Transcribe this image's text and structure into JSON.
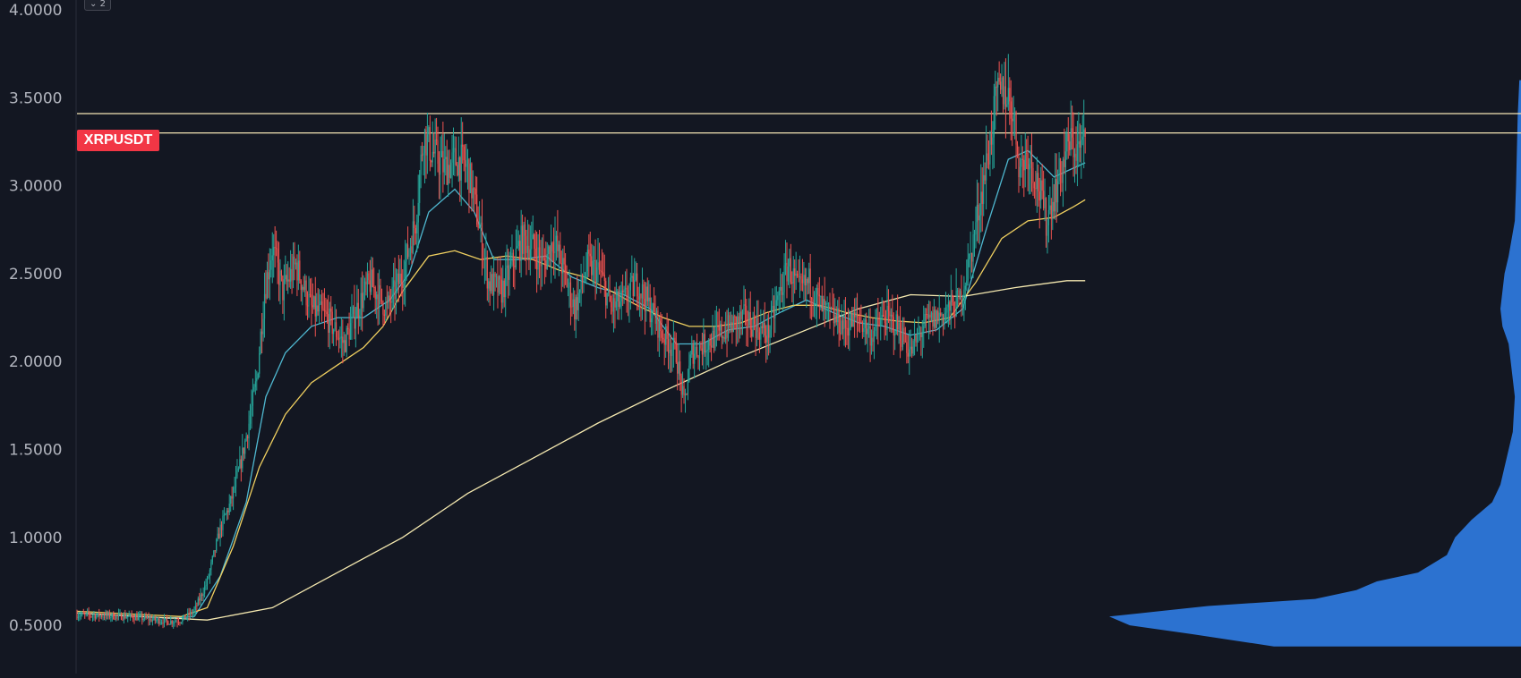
{
  "chart_data": {
    "type": "candlestick",
    "symbol": "XRPUSDT",
    "pane_badge": "2",
    "ylim": [
      0.3,
      4.0
    ],
    "y_ticks": [
      "4.0000",
      "3.5000",
      "3.0000",
      "2.5000",
      "2.0000",
      "1.5000",
      "1.0000",
      "0.5000"
    ],
    "y_tick_values": [
      4.0,
      3.5,
      3.0,
      2.5,
      2.0,
      1.5,
      1.0,
      0.5
    ],
    "horizontal_levels": [
      3.41,
      3.3
    ],
    "price_path": [
      [
        0,
        0.56
      ],
      [
        40,
        0.55
      ],
      [
        70,
        0.52
      ],
      [
        80,
        0.53
      ],
      [
        90,
        0.58
      ],
      [
        100,
        0.75
      ],
      [
        110,
        1.05
      ],
      [
        118,
        1.2
      ],
      [
        125,
        1.4
      ],
      [
        132,
        1.65
      ],
      [
        138,
        1.9
      ],
      [
        144,
        2.4
      ],
      [
        150,
        2.65
      ],
      [
        158,
        2.4
      ],
      [
        168,
        2.55
      ],
      [
        180,
        2.3
      ],
      [
        192,
        2.25
      ],
      [
        205,
        2.1
      ],
      [
        215,
        2.3
      ],
      [
        225,
        2.45
      ],
      [
        238,
        2.3
      ],
      [
        250,
        2.5
      ],
      [
        260,
        2.8
      ],
      [
        266,
        3.3
      ],
      [
        272,
        3.2
      ],
      [
        282,
        3.1
      ],
      [
        292,
        3.15
      ],
      [
        300,
        3.1
      ],
      [
        308,
        2.8
      ],
      [
        316,
        2.45
      ],
      [
        326,
        2.4
      ],
      [
        334,
        2.55
      ],
      [
        342,
        2.7
      ],
      [
        350,
        2.65
      ],
      [
        358,
        2.55
      ],
      [
        366,
        2.7
      ],
      [
        374,
        2.5
      ],
      [
        382,
        2.3
      ],
      [
        392,
        2.55
      ],
      [
        402,
        2.5
      ],
      [
        410,
        2.3
      ],
      [
        420,
        2.35
      ],
      [
        430,
        2.45
      ],
      [
        440,
        2.3
      ],
      [
        450,
        2.15
      ],
      [
        460,
        2.05
      ],
      [
        466,
        1.75
      ],
      [
        472,
        2.05
      ],
      [
        482,
        2.1
      ],
      [
        492,
        2.15
      ],
      [
        502,
        2.2
      ],
      [
        512,
        2.25
      ],
      [
        522,
        2.2
      ],
      [
        530,
        2.15
      ],
      [
        538,
        2.35
      ],
      [
        546,
        2.55
      ],
      [
        554,
        2.4
      ],
      [
        562,
        2.45
      ],
      [
        572,
        2.3
      ],
      [
        580,
        2.25
      ],
      [
        590,
        2.2
      ],
      [
        600,
        2.25
      ],
      [
        610,
        2.15
      ],
      [
        620,
        2.25
      ],
      [
        630,
        2.2
      ],
      [
        640,
        2.05
      ],
      [
        650,
        2.2
      ],
      [
        660,
        2.25
      ],
      [
        670,
        2.3
      ],
      [
        678,
        2.35
      ],
      [
        686,
        2.6
      ],
      [
        694,
        2.95
      ],
      [
        700,
        3.2
      ],
      [
        706,
        3.5
      ],
      [
        712,
        3.55
      ],
      [
        718,
        3.45
      ],
      [
        724,
        3.1
      ],
      [
        730,
        3.2
      ],
      [
        738,
        3.0
      ],
      [
        744,
        2.8
      ],
      [
        750,
        2.95
      ],
      [
        756,
        3.1
      ],
      [
        762,
        3.25
      ],
      [
        768,
        3.2
      ],
      [
        774,
        3.25
      ]
    ],
    "moving_averages": [
      {
        "name": "",
        "color": "#4fb8d0",
        "points": [
          [
            0,
            0.57
          ],
          [
            70,
            0.54
          ],
          [
            90,
            0.55
          ],
          [
            110,
            0.78
          ],
          [
            130,
            1.2
          ],
          [
            145,
            1.8
          ],
          [
            160,
            2.05
          ],
          [
            180,
            2.2
          ],
          [
            200,
            2.25
          ],
          [
            220,
            2.25
          ],
          [
            240,
            2.35
          ],
          [
            255,
            2.5
          ],
          [
            270,
            2.85
          ],
          [
            290,
            2.98
          ],
          [
            305,
            2.85
          ],
          [
            320,
            2.58
          ],
          [
            340,
            2.58
          ],
          [
            360,
            2.6
          ],
          [
            380,
            2.48
          ],
          [
            400,
            2.42
          ],
          [
            420,
            2.38
          ],
          [
            440,
            2.3
          ],
          [
            460,
            2.1
          ],
          [
            480,
            2.1
          ],
          [
            500,
            2.18
          ],
          [
            520,
            2.2
          ],
          [
            540,
            2.28
          ],
          [
            560,
            2.35
          ],
          [
            580,
            2.28
          ],
          [
            600,
            2.22
          ],
          [
            620,
            2.2
          ],
          [
            640,
            2.15
          ],
          [
            660,
            2.18
          ],
          [
            680,
            2.3
          ],
          [
            700,
            2.8
          ],
          [
            715,
            3.15
          ],
          [
            730,
            3.2
          ],
          [
            750,
            3.05
          ],
          [
            765,
            3.1
          ],
          [
            774,
            3.13
          ]
        ]
      },
      {
        "name": "",
        "color": "#f0d060",
        "points": [
          [
            0,
            0.58
          ],
          [
            80,
            0.55
          ],
          [
            100,
            0.6
          ],
          [
            120,
            0.95
          ],
          [
            140,
            1.4
          ],
          [
            160,
            1.7
          ],
          [
            180,
            1.88
          ],
          [
            200,
            1.98
          ],
          [
            220,
            2.08
          ],
          [
            235,
            2.2
          ],
          [
            250,
            2.4
          ],
          [
            270,
            2.6
          ],
          [
            290,
            2.63
          ],
          [
            310,
            2.58
          ],
          [
            330,
            2.6
          ],
          [
            350,
            2.58
          ],
          [
            370,
            2.52
          ],
          [
            390,
            2.48
          ],
          [
            410,
            2.4
          ],
          [
            430,
            2.32
          ],
          [
            450,
            2.25
          ],
          [
            470,
            2.2
          ],
          [
            490,
            2.2
          ],
          [
            510,
            2.22
          ],
          [
            530,
            2.28
          ],
          [
            550,
            2.32
          ],
          [
            570,
            2.32
          ],
          [
            590,
            2.28
          ],
          [
            610,
            2.25
          ],
          [
            630,
            2.23
          ],
          [
            650,
            2.22
          ],
          [
            670,
            2.25
          ],
          [
            690,
            2.45
          ],
          [
            710,
            2.7
          ],
          [
            730,
            2.8
          ],
          [
            750,
            2.82
          ],
          [
            765,
            2.88
          ],
          [
            774,
            2.92
          ]
        ]
      },
      {
        "name": "",
        "color": "#f5e9b0",
        "points": [
          [
            0,
            0.57
          ],
          [
            100,
            0.53
          ],
          [
            150,
            0.6
          ],
          [
            200,
            0.8
          ],
          [
            250,
            1.0
          ],
          [
            300,
            1.25
          ],
          [
            350,
            1.45
          ],
          [
            400,
            1.65
          ],
          [
            450,
            1.83
          ],
          [
            500,
            2.0
          ],
          [
            550,
            2.15
          ],
          [
            600,
            2.3
          ],
          [
            640,
            2.38
          ],
          [
            680,
            2.37
          ],
          [
            720,
            2.42
          ],
          [
            760,
            2.46
          ],
          [
            774,
            2.46
          ]
        ]
      }
    ],
    "volume_profile": [
      [
        0.38,
        0.6
      ],
      [
        0.45,
        0.8
      ],
      [
        0.5,
        0.95
      ],
      [
        0.55,
        1.0
      ],
      [
        0.58,
        0.88
      ],
      [
        0.61,
        0.76
      ],
      [
        0.65,
        0.5
      ],
      [
        0.7,
        0.4
      ],
      [
        0.75,
        0.35
      ],
      [
        0.8,
        0.25
      ],
      [
        0.9,
        0.18
      ],
      [
        1.0,
        0.16
      ],
      [
        1.1,
        0.12
      ],
      [
        1.2,
        0.07
      ],
      [
        1.3,
        0.05
      ],
      [
        1.4,
        0.04
      ],
      [
        1.6,
        0.02
      ],
      [
        1.8,
        0.015
      ],
      [
        2.0,
        0.025
      ],
      [
        2.1,
        0.03
      ],
      [
        2.2,
        0.045
      ],
      [
        2.3,
        0.05
      ],
      [
        2.4,
        0.045
      ],
      [
        2.5,
        0.04
      ],
      [
        2.6,
        0.03
      ],
      [
        2.8,
        0.015
      ],
      [
        3.0,
        0.012
      ],
      [
        3.2,
        0.01
      ],
      [
        3.4,
        0.008
      ],
      [
        3.6,
        0.004
      ]
    ]
  }
}
